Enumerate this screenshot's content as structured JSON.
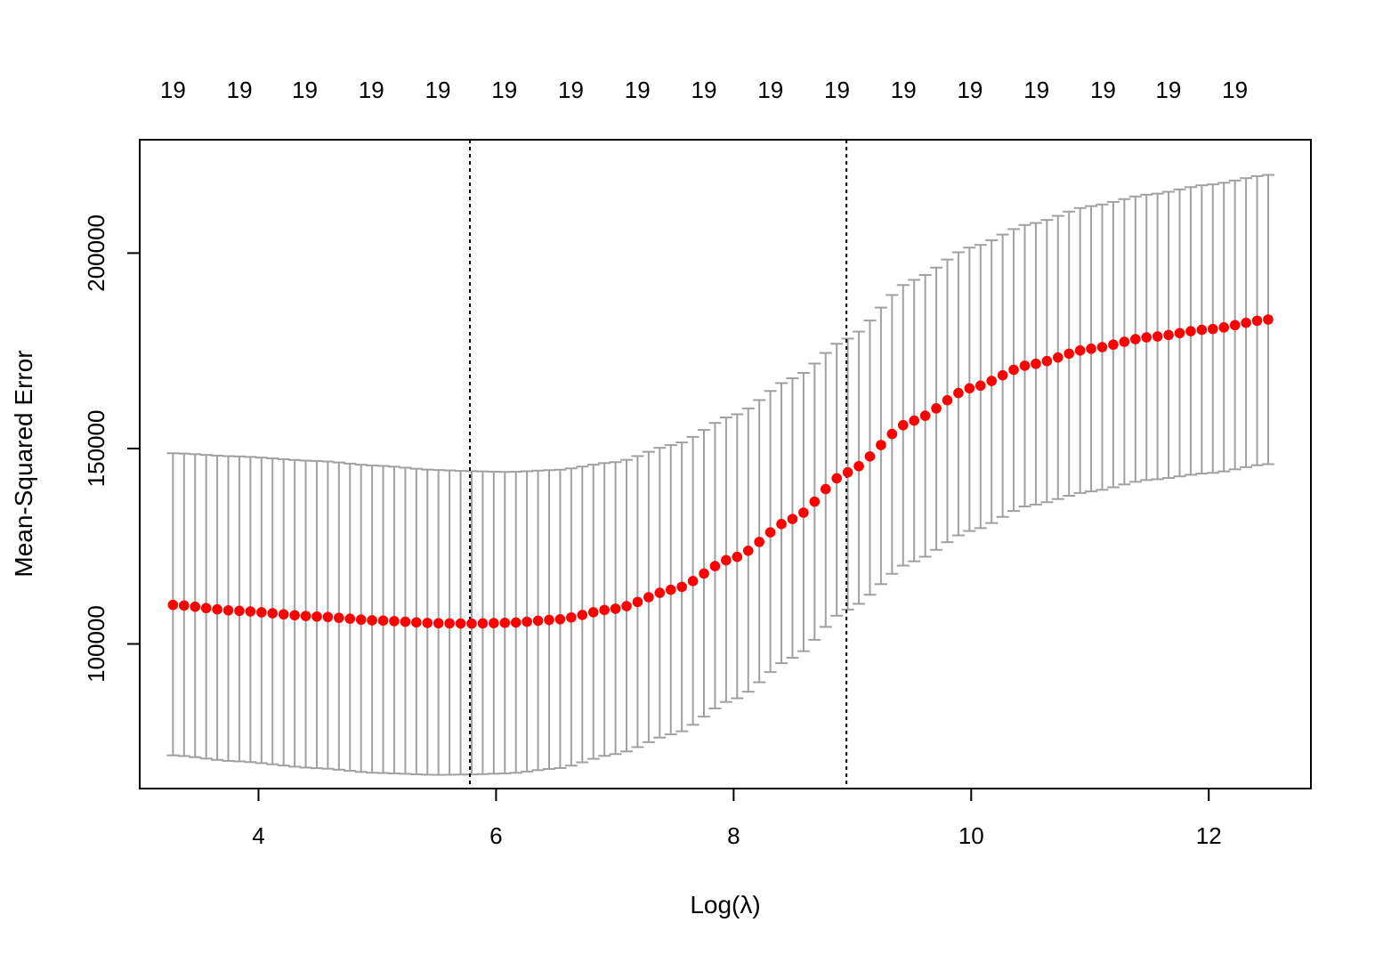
{
  "chart_data": {
    "type": "scatter",
    "xlabel": "Log(λ)",
    "ylabel": "Mean-Squared Error",
    "xlim": [
      3.0,
      12.86
    ],
    "ylim": [
      63000,
      229000
    ],
    "x_ticks": [
      4,
      6,
      8,
      10,
      12
    ],
    "y_ticks": [
      100000,
      150000,
      200000
    ],
    "x_tick_labels": [
      "4",
      "6",
      "8",
      "10",
      "12"
    ],
    "y_tick_labels": [
      "100000",
      "150000",
      "200000"
    ],
    "top_axis_labels": [
      "19",
      "19",
      "19",
      "19",
      "19",
      "19",
      "19",
      "19",
      "19",
      "19",
      "19",
      "19",
      "19",
      "19",
      "19",
      "19",
      "19"
    ],
    "top_axis_positions": [
      3.28,
      3.84,
      4.39,
      4.95,
      5.51,
      6.07,
      6.63,
      7.19,
      7.75,
      8.31,
      8.87,
      9.43,
      9.99,
      10.55,
      11.11,
      11.66,
      12.22
    ],
    "vlines": [
      5.78,
      8.95
    ],
    "lambda_range": [
      3.28,
      12.5
    ],
    "n_points": 100,
    "grid": false,
    "series": [
      {
        "role": "cvm",
        "color": "#ff0000",
        "anchors_x": [
          3.28,
          3.8,
          4.5,
          5.0,
          5.5,
          5.78,
          6.1,
          6.5,
          7.0,
          7.5,
          8.0,
          8.5,
          8.95,
          9.5,
          10.0,
          10.5,
          11.0,
          11.5,
          12.0,
          12.5
        ],
        "anchors_y": [
          110000,
          108500,
          107000,
          106000,
          105300,
          105200,
          105400,
          106200,
          109000,
          114000,
          122000,
          132000,
          143800,
          157000,
          165500,
          171500,
          175500,
          178500,
          180500,
          183000
        ]
      },
      {
        "role": "upper",
        "color": "#a0a0a0",
        "anchors_x": [
          3.28,
          3.8,
          4.5,
          5.0,
          5.5,
          5.78,
          6.1,
          6.5,
          7.0,
          7.5,
          8.0,
          8.5,
          8.95,
          9.5,
          10.0,
          10.5,
          11.0,
          11.5,
          12.0,
          12.5
        ],
        "anchors_y": [
          148800,
          148000,
          146800,
          145600,
          144500,
          144200,
          144000,
          144500,
          146500,
          151000,
          158500,
          168000,
          178000,
          193000,
          201500,
          207500,
          212000,
          215000,
          217500,
          220000
        ]
      },
      {
        "role": "lower",
        "color": "#a0a0a0",
        "anchors_x": [
          3.28,
          3.8,
          4.5,
          5.0,
          5.5,
          5.78,
          6.1,
          6.5,
          7.0,
          7.5,
          8.0,
          8.5,
          8.95,
          9.5,
          10.0,
          10.5,
          11.0,
          11.5,
          12.0,
          12.5
        ],
        "anchors_y": [
          71500,
          70000,
          68200,
          67000,
          66500,
          66600,
          66900,
          68100,
          71800,
          77000,
          85800,
          96500,
          108700,
          121000,
          129000,
          135500,
          139000,
          142000,
          143700,
          146000
        ]
      }
    ]
  }
}
